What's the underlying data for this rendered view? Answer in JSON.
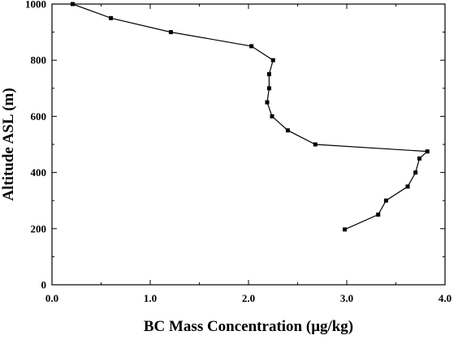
{
  "chart_data": {
    "type": "line",
    "title": "",
    "xlabel": "BC Mass Concentration (μg/kg)",
    "ylabel": "Altitude ASL (m)",
    "xlim": [
      0.0,
      4.0
    ],
    "ylim": [
      0,
      1000
    ],
    "x_ticks": [
      0.0,
      1.0,
      2.0,
      3.0,
      4.0
    ],
    "x_tick_labels": [
      "0.0",
      "1.0",
      "2.0",
      "3.0",
      "4.0"
    ],
    "y_ticks": [
      0,
      200,
      400,
      600,
      800,
      1000
    ],
    "y_tick_labels": [
      "0",
      "200",
      "400",
      "600",
      "800",
      "1000"
    ],
    "grid": false,
    "legend": "none",
    "marker": "square",
    "line_color": "#000000",
    "series": [
      {
        "x": [
          2.98,
          3.32,
          3.4,
          3.62,
          3.7,
          3.74,
          3.82,
          2.68,
          2.4,
          2.24,
          2.19,
          2.21,
          2.21,
          2.25,
          2.03,
          1.21,
          0.6,
          0.21
        ],
        "y": [
          197,
          250,
          300,
          350,
          400,
          450,
          475,
          500,
          550,
          600,
          650,
          700,
          750,
          800,
          850,
          900,
          950,
          1000
        ]
      }
    ]
  }
}
